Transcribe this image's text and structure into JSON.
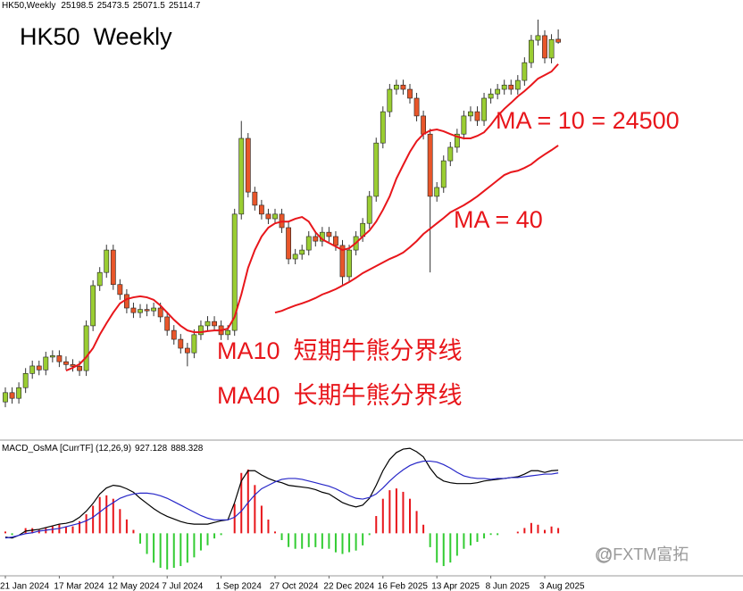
{
  "chart_data": [
    {
      "type": "candlestick",
      "header": "HK50,Weekly",
      "title": "HK50  Weekly",
      "annotations": [
        "MA = 10 = 24500",
        "MA = 40",
        "MA10  短期牛熊分界线",
        "MA40  长期牛熊分界线"
      ],
      "up_color": "#9acd32",
      "down_color": "#e8562a",
      "ylim": [
        14000,
        26000
      ],
      "open": [
        15000,
        15260,
        15100,
        15400,
        15800,
        16010,
        15900,
        16260,
        16300,
        16130,
        16050,
        16000,
        15880,
        17140,
        18270,
        18640,
        19270,
        18300,
        18020,
        17640,
        17510,
        17600,
        17560,
        17640,
        17390,
        17010,
        16760,
        16510,
        16380,
        16890,
        17140,
        17260,
        17140,
        16890,
        17010,
        20280,
        22410,
        20900,
        20530,
        20280,
        20150,
        20280,
        19900,
        19020,
        19150,
        19270,
        19650,
        19520,
        19770,
        19650,
        19400,
        18520,
        19270,
        19650,
        20020,
        20780,
        22280,
        23160,
        23790,
        23910,
        23790,
        23540,
        23040,
        22530,
        20780,
        21030,
        21780,
        22160,
        22530,
        23040,
        23160,
        22910,
        23540,
        23660,
        23790,
        23910,
        23790,
        24040,
        24540,
        25170,
        25300,
        24670,
        25198.5
      ],
      "high": [
        15410,
        15410,
        15550,
        15950,
        16160,
        16160,
        16410,
        16450,
        16450,
        16280,
        16200,
        16150,
        17290,
        18420,
        18790,
        19420,
        19420,
        18450,
        18170,
        17790,
        17750,
        17750,
        17790,
        17790,
        17540,
        17160,
        16910,
        16660,
        17040,
        17290,
        17410,
        17410,
        17290,
        17160,
        20430,
        22900,
        22560,
        21050,
        20680,
        20430,
        20430,
        20430,
        20050,
        19300,
        19420,
        19800,
        19800,
        19920,
        19920,
        19800,
        19550,
        19420,
        19800,
        20170,
        20930,
        22430,
        23310,
        23940,
        24060,
        24060,
        23940,
        23690,
        23190,
        22680,
        21180,
        21930,
        22310,
        22680,
        23190,
        23310,
        23310,
        23690,
        23810,
        23940,
        24060,
        24060,
        24190,
        24690,
        25320,
        25750,
        25450,
        25340,
        25473.5
      ],
      "low": [
        14850,
        14950,
        14950,
        15250,
        15650,
        15750,
        15750,
        16110,
        15980,
        15900,
        15850,
        15730,
        15730,
        16990,
        18120,
        18490,
        18150,
        17870,
        17490,
        17360,
        17360,
        17410,
        17410,
        17240,
        16860,
        16610,
        16360,
        16000,
        16230,
        16740,
        16990,
        16990,
        16740,
        16740,
        16860,
        20130,
        20750,
        20380,
        20130,
        20000,
        20000,
        19750,
        18870,
        18870,
        19000,
        19120,
        19370,
        19370,
        19500,
        19250,
        18300,
        18370,
        19120,
        19500,
        19870,
        20630,
        22130,
        23010,
        23640,
        23640,
        23390,
        22890,
        22380,
        18640,
        20630,
        20880,
        21630,
        22010,
        22380,
        22890,
        22760,
        22760,
        23390,
        23510,
        23640,
        23640,
        23640,
        23890,
        24390,
        25020,
        24520,
        24520,
        25071.5
      ],
      "close": [
        15260,
        15100,
        15400,
        15800,
        16010,
        15900,
        16260,
        16300,
        16130,
        16050,
        16000,
        15880,
        17140,
        18270,
        18640,
        19270,
        18300,
        18020,
        17640,
        17510,
        17600,
        17560,
        17640,
        17390,
        17010,
        16760,
        16510,
        16380,
        16890,
        17140,
        17260,
        17140,
        16890,
        17010,
        20280,
        22410,
        20900,
        20530,
        20280,
        20150,
        20280,
        19900,
        19020,
        19150,
        19270,
        19650,
        19520,
        19770,
        19650,
        19400,
        18520,
        19270,
        19650,
        20020,
        20780,
        22280,
        23160,
        23790,
        23910,
        23790,
        23540,
        23040,
        22530,
        20780,
        21030,
        21780,
        22160,
        22530,
        23040,
        23160,
        22910,
        23540,
        23660,
        23790,
        23910,
        23790,
        24040,
        24540,
        25170,
        25300,
        24670,
        25190,
        25114.7
      ],
      "series": [
        {
          "color": "#e8161b",
          "values": [
            null,
            null,
            null,
            null,
            null,
            null,
            null,
            null,
            null,
            15880,
            15960,
            16060,
            16260,
            16510,
            16890,
            17210,
            17510,
            17770,
            17890,
            17940,
            17970,
            17940,
            17870,
            17710,
            17510,
            17310,
            17140,
            17010,
            16960,
            16960,
            16990,
            17010,
            17010,
            17060,
            17390,
            18020,
            18770,
            19270,
            19650,
            19900,
            20020,
            20070,
            20070,
            20150,
            20200,
            20070,
            19770,
            19570,
            19470,
            19370,
            19270,
            19320,
            19470,
            19650,
            19820,
            20070,
            20400,
            20780,
            21280,
            21660,
            22030,
            22330,
            22530,
            22630,
            22660,
            22610,
            22530,
            22460,
            22410,
            22410,
            22480,
            22580,
            22790,
            23040,
            23240,
            23410,
            23590,
            23740,
            23910,
            24090,
            24190,
            24290,
            24500
          ]
        },
        {
          "color": "#e8161b",
          "values": [
            null,
            null,
            null,
            null,
            null,
            null,
            null,
            null,
            null,
            null,
            null,
            null,
            null,
            null,
            null,
            null,
            null,
            null,
            null,
            null,
            null,
            null,
            null,
            null,
            null,
            null,
            null,
            null,
            null,
            null,
            null,
            null,
            null,
            null,
            null,
            null,
            null,
            null,
            null,
            null,
            17510,
            17560,
            17640,
            17710,
            17770,
            17840,
            17920,
            18020,
            18090,
            18170,
            18270,
            18370,
            18490,
            18620,
            18720,
            18820,
            18920,
            19020,
            19100,
            19200,
            19350,
            19520,
            19720,
            19870,
            20020,
            20170,
            20330,
            20430,
            20530,
            20650,
            20780,
            20930,
            21080,
            21230,
            21380,
            21460,
            21500,
            21580,
            21680,
            21830,
            21960,
            22080,
            22210
          ]
        }
      ]
    },
    {
      "type": "macd",
      "title": "MACD_OsMA [CurrTF] (12,26,9)",
      "watermark": "@FXTM富拓",
      "categories": [
        "21 Jan 2024",
        null,
        null,
        null,
        null,
        null,
        null,
        null,
        "17 Mar 2024",
        null,
        null,
        null,
        null,
        null,
        null,
        null,
        "12 May 2024",
        null,
        null,
        null,
        null,
        null,
        null,
        null,
        "7 Jul 2024",
        null,
        null,
        null,
        null,
        null,
        null,
        null,
        "1 Sep 2024",
        null,
        null,
        null,
        null,
        null,
        null,
        null,
        "27 Oct 2024",
        null,
        null,
        null,
        null,
        null,
        null,
        null,
        "22 Dec 2024",
        null,
        null,
        null,
        null,
        null,
        null,
        null,
        "16 Feb 2025",
        null,
        null,
        null,
        null,
        null,
        null,
        null,
        "13 Apr 2025",
        null,
        null,
        null,
        null,
        null,
        null,
        null,
        "8 Jun 2025",
        null,
        null,
        null,
        null,
        null,
        null,
        null,
        "3 Aug 2025",
        null,
        null
      ],
      "ylim": [
        -560,
        1200
      ],
      "y2lim": [
        -280,
        600
      ],
      "series": [
        {
          "color": "#000000",
          "values": [
            -56,
            -69,
            -30,
            33,
            46,
            58,
            84,
            109,
            135,
            147,
            173,
            236,
            325,
            439,
            579,
            667,
            706,
            693,
            655,
            604,
            515,
            439,
            363,
            299,
            249,
            211,
            173,
            147,
            135,
            135,
            135,
            160,
            185,
            198,
            452,
            769,
            921,
            921,
            858,
            807,
            769,
            744,
            706,
            693,
            680,
            667,
            642,
            604,
            579,
            515,
            452,
            414,
            388,
            414,
            515,
            706,
            921,
            1086,
            1188,
            1239,
            1251,
            1200,
            1124,
            959,
            832,
            769,
            744,
            731,
            731,
            731,
            744,
            769,
            782,
            794,
            807,
            820,
            832,
            871,
            921,
            921,
            896,
            921,
            927.128
          ]
        },
        {
          "color": "#2626c8",
          "values": [
            -69,
            -56,
            -30,
            -5,
            8,
            33,
            46,
            58,
            71,
            96,
            122,
            147,
            185,
            236,
            312,
            388,
            452,
            515,
            553,
            579,
            591,
            591,
            579,
            553,
            515,
            465,
            414,
            363,
            312,
            261,
            223,
            198,
            198,
            198,
            236,
            325,
            452,
            566,
            655,
            706,
            756,
            794,
            807,
            807,
            794,
            769,
            744,
            718,
            693,
            655,
            604,
            553,
            515,
            503,
            528,
            579,
            667,
            769,
            858,
            934,
            997,
            1036,
            1061,
            1061,
            1048,
            1010,
            959,
            896,
            845,
            820,
            807,
            807,
            794,
            807,
            807,
            820,
            820,
            832,
            845,
            858,
            871,
            871,
            888.328
          ]
        },
        {
          "axis": "y2",
          "style": "bar",
          "color_up": "#e8161b",
          "color_down": "#33cc33",
          "values": [
            13,
            -13,
            0,
            38,
            38,
            25,
            38,
            51,
            64,
            51,
            51,
            89,
            140,
            203,
            267,
            279,
            254,
            178,
            102,
            25,
            -76,
            -152,
            -216,
            -254,
            -266,
            -254,
            -241,
            -216,
            -177,
            -126,
            -88,
            -38,
            -13,
            0,
            216,
            444,
            469,
            355,
            203,
            101,
            13,
            -50,
            -101,
            -114,
            -114,
            -102,
            -102,
            -114,
            -114,
            -140,
            -152,
            -139,
            -127,
            -89,
            -13,
            127,
            254,
            317,
            330,
            305,
            254,
            164,
            63,
            -102,
            -216,
            -241,
            -215,
            -165,
            -114,
            -89,
            -63,
            -38,
            -12,
            -13,
            0,
            0,
            12,
            39,
            76,
            63,
            25,
            50,
            38.8
          ]
        }
      ]
    }
  ]
}
